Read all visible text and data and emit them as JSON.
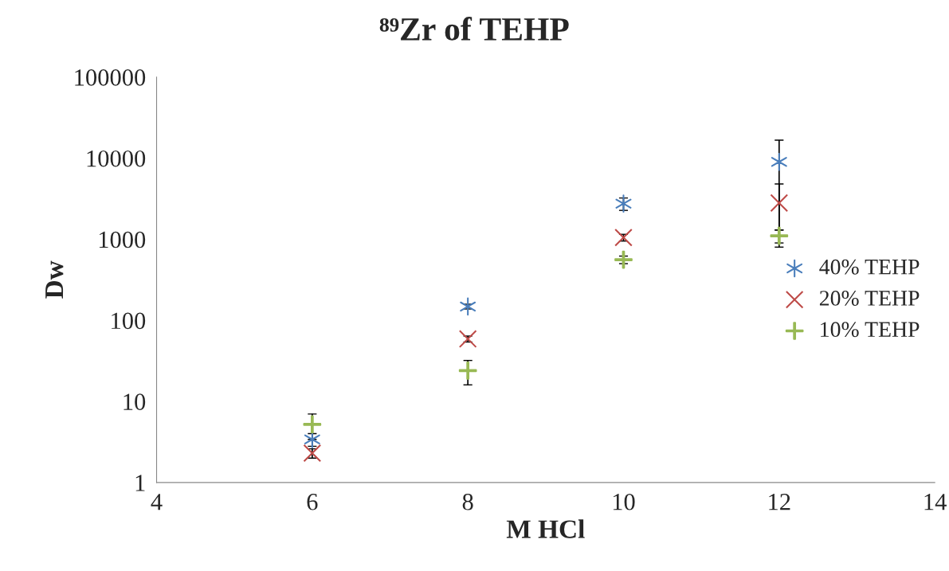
{
  "chart_data": {
    "type": "scatter",
    "title": "⁸⁹Zr of TEHP",
    "xlabel": "M HCl",
    "ylabel": "Dw",
    "x": [
      6,
      8,
      10,
      12
    ],
    "series": [
      {
        "name": "40% TEHP",
        "color": "#4a7ebb",
        "values": [
          3.4,
          148,
          2750,
          9000
        ],
        "errors": [
          0.6,
          10,
          480,
          7700
        ]
      },
      {
        "name": "20% TEHP",
        "color": "#be4b48",
        "values": [
          2.3,
          59,
          1050,
          2800
        ],
        "errors": [
          0.3,
          5,
          100,
          2000
        ]
      },
      {
        "name": "10% TEHP",
        "color": "#98b954",
        "values": [
          5.2,
          24,
          560,
          1100
        ],
        "errors": [
          1.8,
          8,
          60,
          200
        ]
      }
    ],
    "xlim": [
      4,
      14
    ],
    "xticks": [
      4,
      6,
      8,
      10,
      12,
      14
    ],
    "log": true,
    "ylim": [
      1,
      100000
    ],
    "yticks": [
      1,
      10,
      100,
      1000,
      10000,
      100000
    ],
    "grid": false,
    "legend": "right"
  }
}
